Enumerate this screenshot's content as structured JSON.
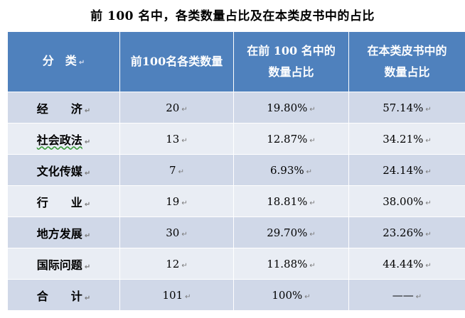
{
  "title": "前 100 名中，各类数量占比及在本类皮书中的占比",
  "paragraph_mark": "↵",
  "headers": {
    "category": "分　类",
    "count": "前100名各类数量",
    "top_share_line1": "在前 100 名中的",
    "top_share_line2": "数量占比",
    "type_share_line1": "在本类皮书中的",
    "type_share_line2": "数量占比"
  },
  "rows": [
    {
      "category": "经　　济",
      "count": "20",
      "top_share": "19.80%",
      "type_share": "57.14%"
    },
    {
      "category": "社会政法",
      "count": "13",
      "top_share": "12.87%",
      "type_share": "34.21%"
    },
    {
      "category": "文化传媒",
      "count": "7",
      "top_share": "6.93%",
      "type_share": "24.14%"
    },
    {
      "category": "行　　业",
      "count": "19",
      "top_share": "18.81%",
      "type_share": "38.00%"
    },
    {
      "category": "地方发展",
      "count": "30",
      "top_share": "29.70%",
      "type_share": "23.26%"
    },
    {
      "category": "国际问题",
      "count": "12",
      "top_share": "11.88%",
      "type_share": "44.44%"
    },
    {
      "category": "合　　计",
      "count": "101",
      "top_share": "100%",
      "type_share": "——"
    }
  ]
}
